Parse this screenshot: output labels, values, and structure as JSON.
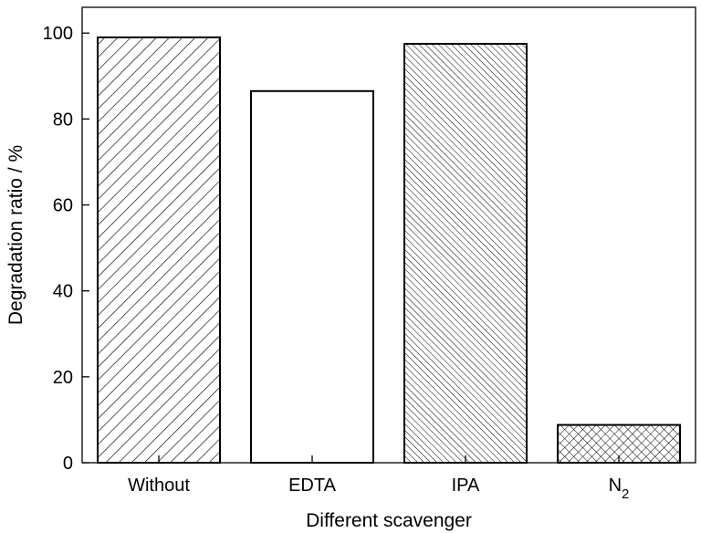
{
  "chart_data": {
    "type": "bar",
    "categories": [
      "Without",
      "EDTA",
      "IPA",
      "N2"
    ],
    "category_labels": [
      {
        "main": "Without",
        "sub": ""
      },
      {
        "main": "EDTA",
        "sub": ""
      },
      {
        "main": "IPA",
        "sub": ""
      },
      {
        "main": "N",
        "sub": "2"
      }
    ],
    "values": [
      99,
      86.5,
      97.5,
      8.8
    ],
    "patterns": [
      "hatch-forward",
      "none",
      "hatch-backward-dense",
      "crosshatch"
    ],
    "xlabel": "Different scavenger",
    "ylabel": "Degradation ratio / %",
    "ylim": [
      0,
      106
    ],
    "yticks": [
      0,
      20,
      40,
      60,
      80,
      100
    ],
    "grid": false,
    "colors": {
      "stroke": "#000000",
      "fill": "#ffffff"
    }
  }
}
